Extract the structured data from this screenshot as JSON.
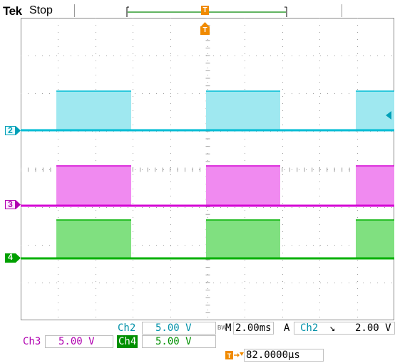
{
  "header": {
    "brand": "Tek",
    "acquisition_state": "Stop"
  },
  "channels": [
    {
      "id": "2",
      "color": "#00bcd4",
      "fill": "#9fe8f0",
      "label_color": "#00a0b8"
    },
    {
      "id": "3",
      "color": "#d400d4",
      "fill": "#f08af0",
      "label_color": "#b000b0"
    },
    {
      "id": "4",
      "color": "#00b000",
      "fill": "#80e080",
      "label_color": "#009000"
    }
  ],
  "markers": {
    "trigger_marker": "T",
    "trigger_position_marker": "T"
  },
  "readouts": {
    "ch2_label": "Ch2",
    "ch2_scale": "5.00 V",
    "bw_limit_symbol": "BW",
    "timebase_prefix": "M",
    "timebase": "2.00ms",
    "trigger_mode": "A",
    "trigger_source": "Ch2",
    "trigger_slope_symbol": "↘",
    "trigger_level": "2.00 V",
    "ch3_label": "Ch3",
    "ch3_scale": "5.00 V",
    "ch4_label": "Ch4",
    "ch4_scale": "5.00 V",
    "trigger_delay_icon": "trigger-position-arrow-icon",
    "trigger_delay": "82.0000µs"
  }
}
